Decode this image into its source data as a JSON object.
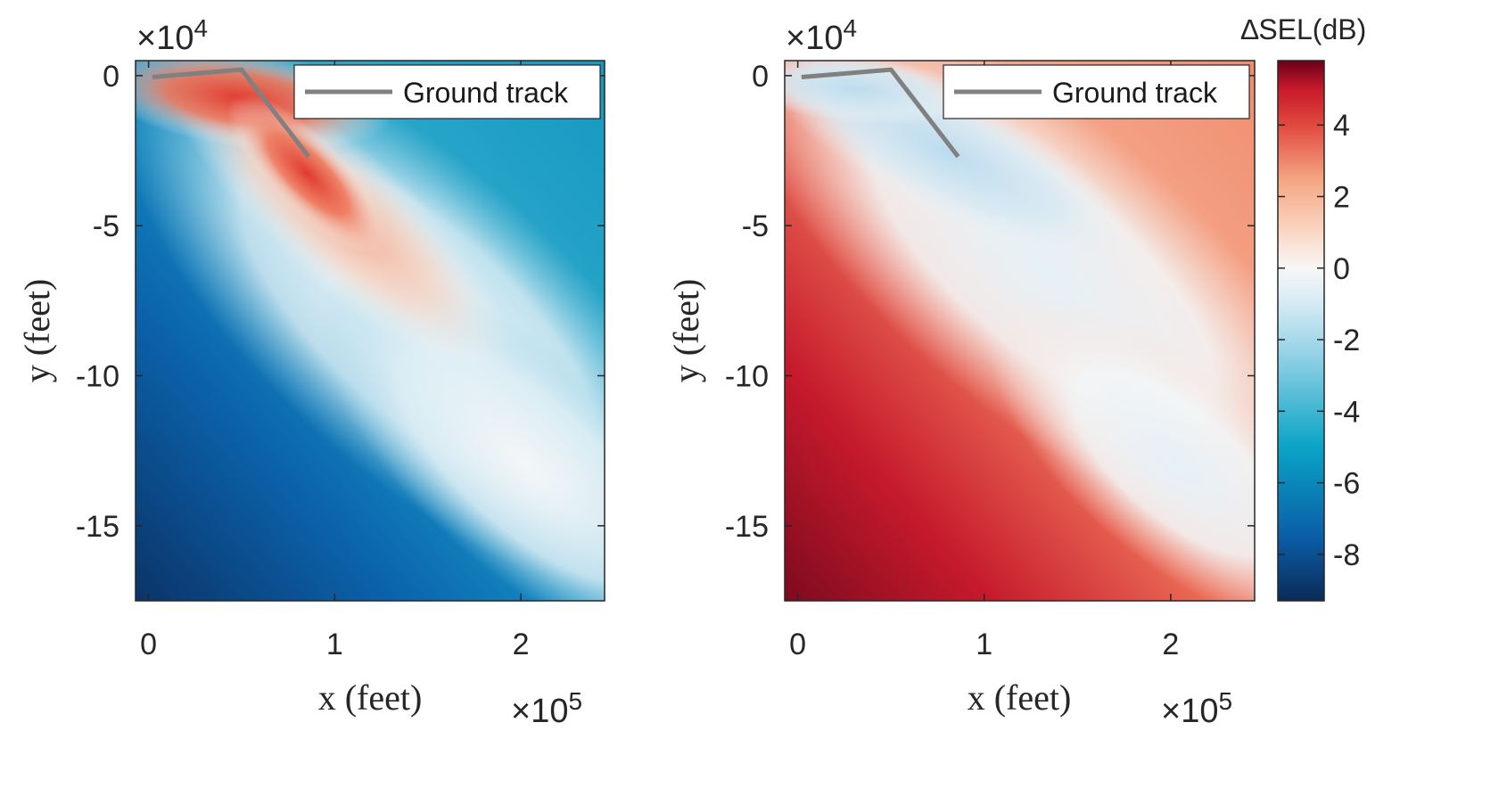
{
  "chart_data": [
    {
      "type": "heatmap",
      "panel": "left",
      "xlabel": "x (feet)",
      "ylabel": "y (feet)",
      "x_multiplier": "×10",
      "x_multiplier_exp": "5",
      "y_multiplier": "×10",
      "y_multiplier_exp": "4",
      "xlim": [
        -0.07,
        2.45
      ],
      "ylim": [
        -17.5,
        0.5
      ],
      "xticks": [
        0,
        1,
        2
      ],
      "xtick_labels": [
        "0",
        "1",
        "2"
      ],
      "yticks": [
        0,
        -5,
        -10,
        -15
      ],
      "ytick_labels": [
        "0",
        "-5",
        "-10",
        "-15"
      ],
      "legend": {
        "label": "Ground track",
        "placement": "top-right"
      },
      "ground_track": {
        "x": [
          0.02,
          0.5,
          0.86
        ],
        "y": [
          -0.05,
          0.2,
          -2.7
        ]
      },
      "delta_sel_range_db": [
        -9,
        4.5
      ],
      "description_values": {
        "max_near_track_db": 4.5,
        "min_lower_left_db": -9
      }
    },
    {
      "type": "heatmap",
      "panel": "right",
      "xlabel": "x (feet)",
      "ylabel": "y (feet)",
      "x_multiplier": "×10",
      "x_multiplier_exp": "5",
      "y_multiplier": "×10",
      "y_multiplier_exp": "4",
      "xlim": [
        -0.07,
        2.45
      ],
      "ylim": [
        -17.5,
        0.5
      ],
      "xticks": [
        0,
        1,
        2
      ],
      "xtick_labels": [
        "0",
        "1",
        "2"
      ],
      "yticks": [
        0,
        -5,
        -10,
        -15
      ],
      "ytick_labels": [
        "0",
        "-5",
        "-10",
        "-15"
      ],
      "legend": {
        "label": "Ground track",
        "placement": "top-right"
      },
      "ground_track": {
        "x": [
          0.02,
          0.5,
          0.86
        ],
        "y": [
          -0.05,
          0.2,
          -2.7
        ]
      },
      "delta_sel_range_db": [
        -2.5,
        5.5
      ]
    }
  ],
  "colorbar": {
    "title": "∆SEL(dB)",
    "range": [
      -9.3,
      5.8
    ],
    "ticks": [
      4,
      2,
      0,
      -2,
      -4,
      -6,
      -8
    ],
    "tick_labels": [
      "4",
      "2",
      "0",
      "-2",
      "-4",
      "-6",
      "-8"
    ],
    "colors": [
      {
        "v": -9.3,
        "c": "#0b2b58"
      },
      {
        "v": -7.5,
        "c": "#0b5ea8"
      },
      {
        "v": -5.0,
        "c": "#0aa4c6"
      },
      {
        "v": -2.5,
        "c": "#8fd0e5"
      },
      {
        "v": -1.0,
        "c": "#d5eaf4"
      },
      {
        "v": 0.0,
        "c": "#f7f7f7"
      },
      {
        "v": 1.0,
        "c": "#fbd7c6"
      },
      {
        "v": 2.5,
        "c": "#f4a582"
      },
      {
        "v": 4.0,
        "c": "#e0493d"
      },
      {
        "v": 5.0,
        "c": "#c81a2c"
      },
      {
        "v": 5.8,
        "c": "#6b0018"
      }
    ]
  },
  "colors": {
    "ground_track": "#808080",
    "axis": "#262626"
  }
}
